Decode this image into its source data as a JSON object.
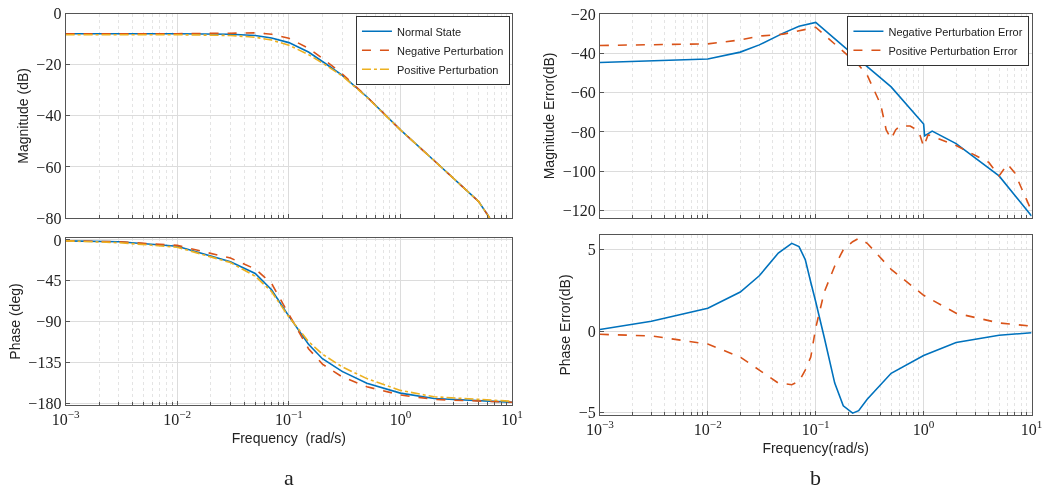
{
  "chart_data": [
    {
      "type": "line",
      "ylabel": "Magnitude (dB)",
      "xlim": [
        0.001,
        10
      ],
      "xticks": [
        {
          "value": 0.001,
          "label": "10$^{−3}$"
        },
        {
          "value": 0.01,
          "label": "10$^{−2}$"
        },
        {
          "value": 0.1,
          "label": "10$^{−1}$"
        },
        {
          "value": 1,
          "label": "10$^{0}$"
        },
        {
          "value": 10,
          "label": "10$^{1}$"
        }
      ],
      "ylim": [
        -80,
        0
      ],
      "yticks": [
        0,
        {
          "value": -20,
          "label": "−20"
        },
        {
          "value": -40,
          "label": "−40"
        },
        {
          "value": -60,
          "label": "−60"
        },
        {
          "value": -80,
          "label": "−80"
        }
      ],
      "log": "x",
      "grid": true,
      "legend": "top right",
      "tick_labels": "y",
      "x": [
        0.001,
        0.01,
        0.03,
        0.05,
        0.07,
        0.1,
        0.15,
        0.2,
        0.3,
        0.5,
        1,
        2,
        5,
        6.3
      ],
      "series": [
        {
          "name": "Normal State",
          "color": "#0072bd",
          "line_style": "solid",
          "values": [
            -7.8,
            -7.8,
            -8.0,
            -8.5,
            -9.5,
            -11.3,
            -15,
            -18.7,
            -24,
            -32.5,
            -45.5,
            -57.5,
            -73.5,
            -80
          ]
        },
        {
          "name": "Negative Perturbation",
          "color": "#d95319",
          "line_style": "dashed",
          "values": [
            -7.8,
            -7.8,
            -7.6,
            -7.5,
            -8,
            -9.6,
            -13.5,
            -17.5,
            -23.5,
            -32.5,
            -45.5,
            -57.5,
            -73.5,
            -80
          ]
        },
        {
          "name": "Positive Perturbation",
          "color": "#edb120",
          "line_style": "dashdot",
          "values": [
            -8.2,
            -8.2,
            -8.5,
            -9.2,
            -10.3,
            -12.3,
            -16,
            -19.3,
            -24.3,
            -32.7,
            -45.5,
            -57.5,
            -73.5,
            -80
          ]
        }
      ]
    },
    {
      "type": "line",
      "xlabel": "Frequency  (rad/s)",
      "ylabel": "Phase (deg)",
      "annotations": [
        "a"
      ],
      "xlim": [
        0.001,
        10
      ],
      "xticks": [
        {
          "value": 0.001,
          "label": "10$^{−3}$"
        },
        {
          "value": 0.01,
          "label": "10$^{−2}$"
        },
        {
          "value": 0.1,
          "label": "10$^{−1}$"
        },
        {
          "value": 1,
          "label": "10$^{0}$"
        },
        {
          "value": 10,
          "label": "10$^{1}$"
        }
      ],
      "ylim": [
        -182,
        2
      ],
      "yticks": [
        0,
        {
          "value": -45,
          "label": "−45"
        },
        {
          "value": -90,
          "label": "−90"
        },
        {
          "value": -135,
          "label": "−135"
        },
        {
          "value": -180,
          "label": "−180"
        }
      ],
      "log": "x",
      "grid": true,
      "x": [
        0.001,
        0.003,
        0.01,
        0.03,
        0.05,
        0.07,
        0.1,
        0.15,
        0.2,
        0.3,
        0.5,
        1,
        2,
        10
      ],
      "series": [
        {
          "color": "#0072bd",
          "line_style": "solid",
          "values": [
            -1,
            -2,
            -7,
            -24,
            -37,
            -55,
            -84,
            -115,
            -131,
            -145,
            -158,
            -169,
            -175,
            -179
          ]
        },
        {
          "color": "#d95319",
          "line_style": "dashed",
          "values": [
            -1,
            -2,
            -6,
            -20,
            -32,
            -48,
            -82,
            -120,
            -137,
            -151,
            -162,
            -171,
            -176,
            -179
          ]
        },
        {
          "color": "#edb120",
          "line_style": "dashdot",
          "values": [
            -1,
            -3,
            -8,
            -25,
            -40,
            -57,
            -85,
            -112,
            -126,
            -140,
            -153,
            -166,
            -173,
            -178
          ]
        }
      ]
    },
    {
      "type": "line",
      "ylabel": "Magnitude Error(dB)",
      "xlim": [
        0.001,
        10
      ],
      "xticks": [
        {
          "value": 0.001,
          "label": "10$^{−3}$"
        },
        {
          "value": 0.01,
          "label": "10$^{−2}$"
        },
        {
          "value": 0.1,
          "label": "10$^{−1}$"
        },
        {
          "value": 1,
          "label": "10$^{0}$"
        },
        {
          "value": 10,
          "label": "10$^{1}$"
        }
      ],
      "ylim": [
        -124,
        -19.6
      ],
      "yticks": [
        {
          "value": -20,
          "label": "−20"
        },
        {
          "value": -40,
          "label": "−40"
        },
        {
          "value": -60,
          "label": "−60"
        },
        {
          "value": -80,
          "label": "−80"
        },
        {
          "value": -100,
          "label": "−100"
        },
        {
          "value": -120,
          "label": "−120"
        }
      ],
      "log": "x",
      "grid": true,
      "legend": "top right",
      "tick_labels": "y",
      "series": [
        {
          "name": "Negative Perturbation Error",
          "color": "#0072bd",
          "line_style": "solid",
          "x": [
            0.001,
            0.01,
            0.02,
            0.03,
            0.05,
            0.07,
            0.1,
            0.3,
            0.5,
            1,
            1.02,
            1.2,
            2,
            5,
            10
          ],
          "values": [
            -44.5,
            -42.7,
            -39.2,
            -35.5,
            -29.5,
            -26,
            -24,
            -46.6,
            -57,
            -76,
            -82,
            -79.6,
            -86,
            -102.5,
            -123
          ]
        },
        {
          "name": "Positive Perturbation Error",
          "color": "#d95319",
          "line_style": "dashed",
          "x": [
            0.001,
            0.01,
            0.02,
            0.03,
            0.05,
            0.1,
            0.25,
            0.3,
            0.4,
            0.45,
            0.5,
            0.55,
            0.6,
            0.75,
            0.9,
            1.0,
            1.1,
            2,
            4,
            5,
            6,
            7,
            10
          ],
          "values": [
            -35.8,
            -35,
            -33,
            -31,
            -30,
            -26.5,
            -45.8,
            -51,
            -66,
            -79,
            -83.5,
            -79,
            -77,
            -77,
            -79.6,
            -87.5,
            -81.5,
            -87,
            -95.5,
            -102.5,
            -96.5,
            -101,
            -120.5
          ]
        }
      ]
    },
    {
      "type": "line",
      "xlabel": "Frequency(rad/s)",
      "ylabel": "Phase Error(dB)",
      "annotations": [
        "b"
      ],
      "xlim": [
        0.001,
        10
      ],
      "xticks": [
        {
          "value": 0.001,
          "label": "10$^{−3}$"
        },
        {
          "value": 0.01,
          "label": "10$^{−2}$"
        },
        {
          "value": 0.1,
          "label": "10$^{−1}$"
        },
        {
          "value": 1,
          "label": "10$^{0}$"
        },
        {
          "value": 10,
          "label": "10$^{1}$"
        }
      ],
      "ylim": [
        -5.15,
        5.9
      ],
      "yticks": [
        5,
        0,
        {
          "value": -5,
          "label": "−5"
        }
      ],
      "log": "x",
      "grid": true,
      "x": [
        0.001,
        0.003,
        0.01,
        0.02,
        0.03,
        0.045,
        0.06,
        0.07,
        0.08,
        0.09,
        0.1,
        0.12,
        0.15,
        0.18,
        0.22,
        0.25,
        0.3,
        0.5,
        1,
        2,
        5,
        10
      ],
      "series": [
        {
          "color": "#0072bd",
          "line_style": "solid",
          "values": [
            0.1,
            0.6,
            1.4,
            2.4,
            3.4,
            4.8,
            5.4,
            5.2,
            4.4,
            3.0,
            1.8,
            -0.4,
            -3.2,
            -4.6,
            -5.05,
            -4.9,
            -4.2,
            -2.6,
            -1.5,
            -0.7,
            -0.26,
            -0.1
          ]
        },
        {
          "color": "#d95319",
          "line_style": "dashed",
          "values": [
            -0.2,
            -0.3,
            -0.8,
            -1.6,
            -2.4,
            -3.2,
            -3.3,
            -3.1,
            -2.4,
            -1.6,
            0.2,
            2.4,
            4.0,
            5.0,
            5.5,
            5.7,
            5.4,
            3.8,
            2.2,
            1.1,
            0.5,
            0.3
          ]
        }
      ]
    }
  ]
}
